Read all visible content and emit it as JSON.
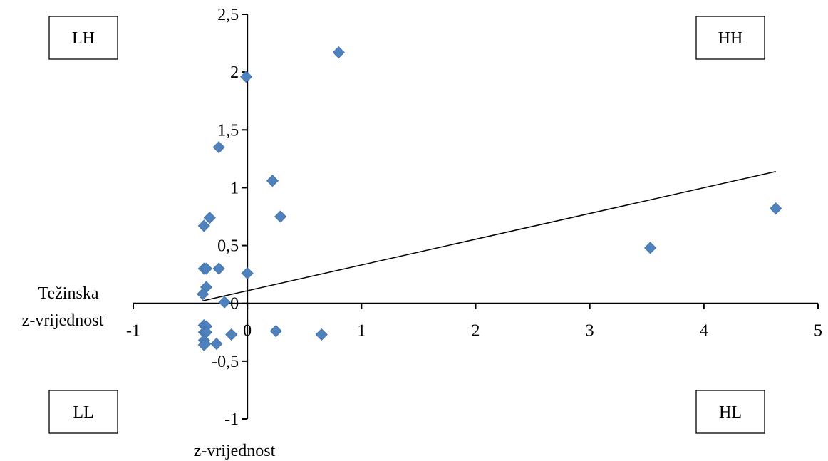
{
  "chart_data": {
    "type": "scatter",
    "title": "",
    "xlabel": "z-vrijednost",
    "ylabel": "Težinska z-vrijednost",
    "ylabel_lines": [
      "Težinska",
      "z-vrijednost"
    ],
    "xlim": [
      -1,
      5
    ],
    "ylim": [
      -1,
      2.5
    ],
    "x_ticks": [
      -1,
      0,
      1,
      2,
      3,
      4,
      5
    ],
    "x_tick_labels": [
      "-1",
      "0",
      "1",
      "2",
      "3",
      "4",
      "5"
    ],
    "y_ticks": [
      -1,
      -0.5,
      0,
      0.5,
      1,
      1.5,
      2,
      2.5
    ],
    "y_tick_labels": [
      "-1",
      "-0,5",
      "0",
      "0,5",
      "1",
      "1,5",
      "2",
      "2,5"
    ],
    "grid": false,
    "marker_color": "#4f81bd",
    "trendline_color": "#000000",
    "series": [
      {
        "marker": "diamond",
        "points": [
          {
            "x": 0.8,
            "y": 2.17
          },
          {
            "x": -0.01,
            "y": 1.96
          },
          {
            "x": -0.25,
            "y": 1.35
          },
          {
            "x": 0.22,
            "y": 1.06
          },
          {
            "x": 0.29,
            "y": 0.75
          },
          {
            "x": -0.33,
            "y": 0.74
          },
          {
            "x": -0.38,
            "y": 0.67
          },
          {
            "x": 4.63,
            "y": 0.82
          },
          {
            "x": 3.53,
            "y": 0.48
          },
          {
            "x": -0.38,
            "y": 0.3
          },
          {
            "x": -0.36,
            "y": 0.3
          },
          {
            "x": -0.25,
            "y": 0.3
          },
          {
            "x": 0.0,
            "y": 0.26
          },
          {
            "x": -0.36,
            "y": 0.14
          },
          {
            "x": -0.39,
            "y": 0.08
          },
          {
            "x": -0.2,
            "y": 0.01
          },
          {
            "x": -0.38,
            "y": -0.19
          },
          {
            "x": -0.36,
            "y": -0.2
          },
          {
            "x": -0.38,
            "y": -0.25
          },
          {
            "x": -0.36,
            "y": -0.25
          },
          {
            "x": 0.25,
            "y": -0.24
          },
          {
            "x": 0.65,
            "y": -0.27
          },
          {
            "x": -0.14,
            "y": -0.27
          },
          {
            "x": -0.38,
            "y": -0.32
          },
          {
            "x": -0.37,
            "y": -0.35
          },
          {
            "x": -0.27,
            "y": -0.35
          },
          {
            "x": -0.38,
            "y": -0.36
          }
        ]
      }
    ],
    "trendline": {
      "x": [
        -0.4,
        4.63
      ],
      "y": [
        0.02,
        1.14
      ]
    },
    "quadrant_labels": [
      "LH",
      "HH",
      "LL",
      "HL"
    ]
  }
}
